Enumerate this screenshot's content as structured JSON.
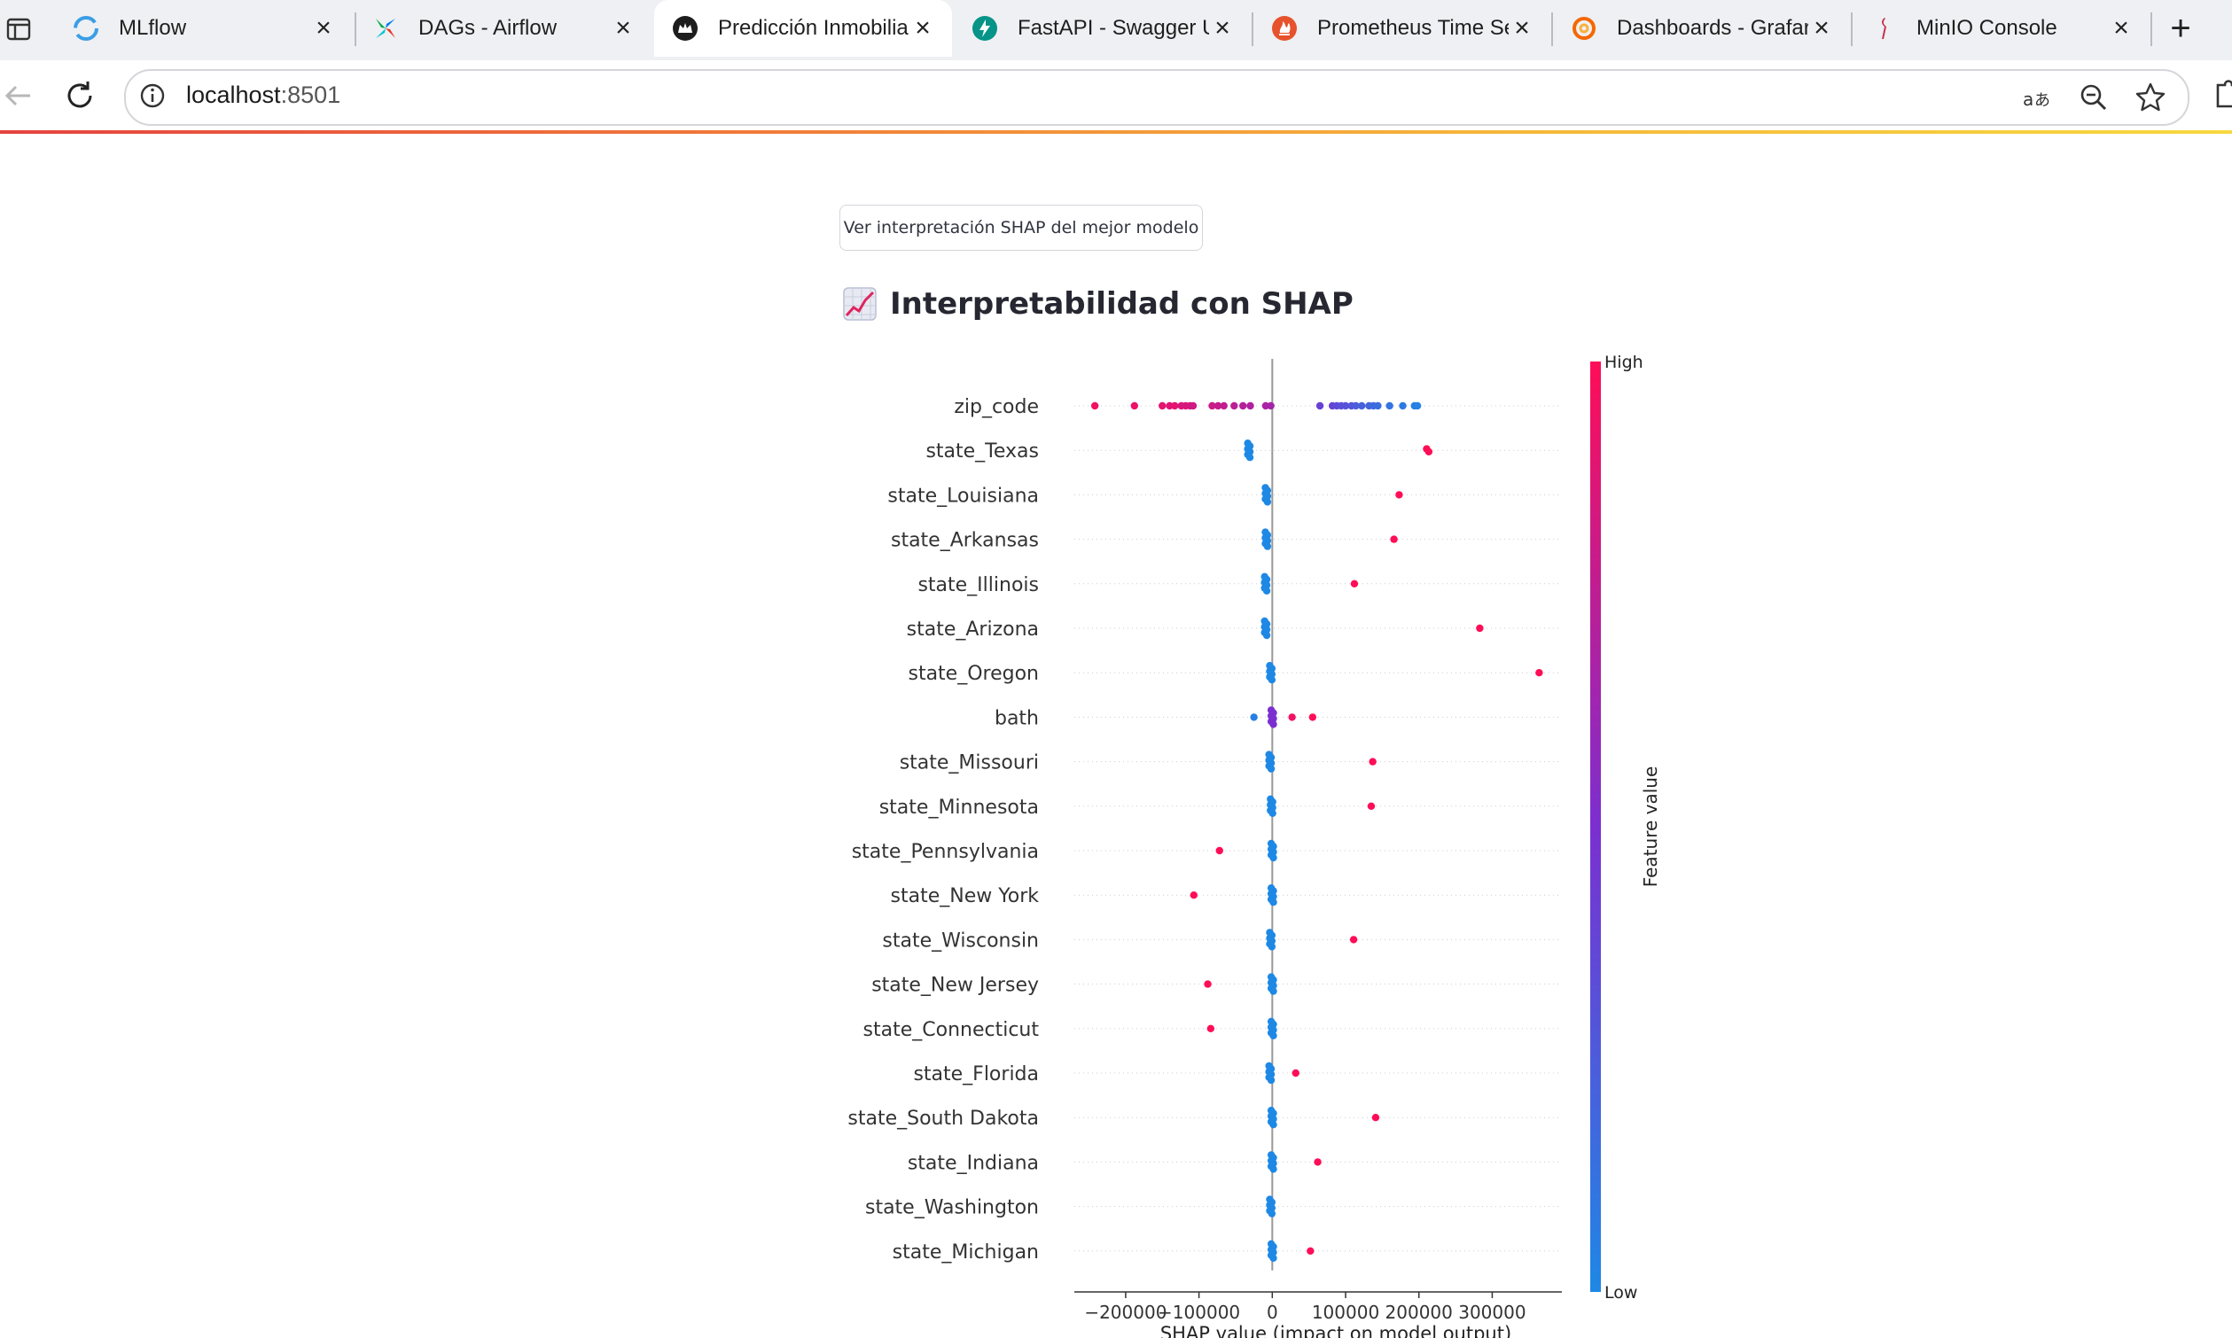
{
  "browser": {
    "tabs": [
      {
        "title": "MLflow",
        "icon": "mlflow-icon"
      },
      {
        "title": "DAGs - Airflow",
        "icon": "airflow-icon"
      },
      {
        "title": "Predicción Inmobilia",
        "icon": "streamlit-crown-icon"
      },
      {
        "title": "FastAPI - Swagger U",
        "icon": "fastapi-icon"
      },
      {
        "title": "Prometheus Time Se",
        "icon": "prometheus-icon"
      },
      {
        "title": "Dashboards - Grafar",
        "icon": "grafana-icon"
      },
      {
        "title": "MinIO Console",
        "icon": "minio-icon"
      }
    ],
    "active_tab": 2,
    "address": {
      "host": "localhost",
      "port": ":8501"
    }
  },
  "page": {
    "button_label": "Ver interpretación SHAP del mejor modelo",
    "heading": "Interpretabilidad con SHAP",
    "heading_icon": "chart-increasing-emoji"
  },
  "colors": {
    "low": "#1e88e5",
    "high": "#ff0d57",
    "mid": "#7b2fd0",
    "zero_line": "#999999"
  },
  "chart_data": {
    "type": "scatter",
    "subtype": "shap-beeswarm",
    "xlabel": "SHAP value (impact on model output)",
    "xticks": [
      -200000,
      -100000,
      0,
      100000,
      200000,
      300000
    ],
    "xtick_labels": [
      "−200000",
      "−100000",
      "0",
      "100000",
      "200000",
      "300000"
    ],
    "xlim": [
      -270000,
      395000
    ],
    "colorbar": {
      "label": "Feature value",
      "high_label": "High",
      "low_label": "Low"
    },
    "features": [
      {
        "name": "zip_code",
        "points": [
          {
            "x": -242000,
            "v": 0.95
          },
          {
            "x": -188000,
            "v": 0.93
          },
          {
            "x": -150000,
            "v": 0.9
          },
          {
            "x": -140000,
            "v": 0.88
          },
          {
            "x": -133000,
            "v": 0.9
          },
          {
            "x": -124000,
            "v": 0.85
          },
          {
            "x": -118000,
            "v": 0.86
          },
          {
            "x": -112000,
            "v": 0.84
          },
          {
            "x": -108000,
            "v": 0.82
          },
          {
            "x": -82000,
            "v": 0.8
          },
          {
            "x": -74000,
            "v": 0.78
          },
          {
            "x": -66000,
            "v": 0.76
          },
          {
            "x": -52000,
            "v": 0.74
          },
          {
            "x": -40000,
            "v": 0.72
          },
          {
            "x": -30000,
            "v": 0.7
          },
          {
            "x": -9000,
            "v": 0.68
          },
          {
            "x": -2000,
            "v": 0.66
          },
          {
            "x": 65000,
            "v": 0.4
          },
          {
            "x": 82000,
            "v": 0.38
          },
          {
            "x": 88000,
            "v": 0.35
          },
          {
            "x": 94000,
            "v": 0.32
          },
          {
            "x": 100000,
            "v": 0.3
          },
          {
            "x": 108000,
            "v": 0.28
          },
          {
            "x": 114000,
            "v": 0.25
          },
          {
            "x": 122000,
            "v": 0.22
          },
          {
            "x": 132000,
            "v": 0.2
          },
          {
            "x": 138000,
            "v": 0.17
          },
          {
            "x": 144000,
            "v": 0.15
          },
          {
            "x": 160000,
            "v": 0.12
          },
          {
            "x": 178000,
            "v": 0.08
          },
          {
            "x": 194000,
            "v": 0.05
          },
          {
            "x": 198000,
            "v": 0.03
          }
        ]
      },
      {
        "name": "state_Texas",
        "points": [
          {
            "x": -32000,
            "v": 0.0,
            "n": 6
          },
          {
            "x": 212000,
            "v": 1.0,
            "n": 2
          }
        ]
      },
      {
        "name": "state_Louisiana",
        "points": [
          {
            "x": -8000,
            "v": 0.0,
            "n": 6
          },
          {
            "x": 173000,
            "v": 1.0
          }
        ]
      },
      {
        "name": "state_Arkansas",
        "points": [
          {
            "x": -8000,
            "v": 0.0,
            "n": 6
          },
          {
            "x": 166000,
            "v": 1.0
          }
        ]
      },
      {
        "name": "state_Illinois",
        "points": [
          {
            "x": -9000,
            "v": 0.0,
            "n": 6
          },
          {
            "x": 112000,
            "v": 1.0
          }
        ]
      },
      {
        "name": "state_Arizona",
        "points": [
          {
            "x": -9000,
            "v": 0.0,
            "n": 6
          },
          {
            "x": 283000,
            "v": 1.0
          }
        ]
      },
      {
        "name": "state_Oregon",
        "points": [
          {
            "x": -2000,
            "v": 0.0,
            "n": 6
          },
          {
            "x": 364000,
            "v": 1.0
          }
        ]
      },
      {
        "name": "bath",
        "points": [
          {
            "x": -25000,
            "v": 0.05
          },
          {
            "x": 0,
            "v": 0.5,
            "n": 6
          },
          {
            "x": 27000,
            "v": 0.95
          },
          {
            "x": 55000,
            "v": 1.0
          }
        ]
      },
      {
        "name": "state_Missouri",
        "points": [
          {
            "x": -3000,
            "v": 0.0,
            "n": 6
          },
          {
            "x": 137000,
            "v": 1.0
          }
        ]
      },
      {
        "name": "state_Minnesota",
        "points": [
          {
            "x": -1000,
            "v": 0.0,
            "n": 6
          },
          {
            "x": 135000,
            "v": 1.0
          }
        ]
      },
      {
        "name": "state_Pennsylvania",
        "points": [
          {
            "x": 0,
            "v": 0.0,
            "n": 6
          },
          {
            "x": -72000,
            "v": 1.0
          }
        ]
      },
      {
        "name": "state_New York",
        "points": [
          {
            "x": 0,
            "v": 0.0,
            "n": 6
          },
          {
            "x": -107000,
            "v": 1.0
          }
        ]
      },
      {
        "name": "state_Wisconsin",
        "points": [
          {
            "x": -2000,
            "v": 0.0,
            "n": 6
          },
          {
            "x": 111000,
            "v": 1.0
          }
        ]
      },
      {
        "name": "state_New Jersey",
        "points": [
          {
            "x": 0,
            "v": 0.0,
            "n": 6
          },
          {
            "x": -88000,
            "v": 1.0
          }
        ]
      },
      {
        "name": "state_Connecticut",
        "points": [
          {
            "x": 0,
            "v": 0.0,
            "n": 6
          },
          {
            "x": -84000,
            "v": 1.0
          }
        ]
      },
      {
        "name": "state_Florida",
        "points": [
          {
            "x": -3000,
            "v": 0.0,
            "n": 6
          },
          {
            "x": 32000,
            "v": 1.0
          }
        ]
      },
      {
        "name": "state_South Dakota",
        "points": [
          {
            "x": 0,
            "v": 0.0,
            "n": 6
          },
          {
            "x": 141000,
            "v": 1.0
          }
        ]
      },
      {
        "name": "state_Indiana",
        "points": [
          {
            "x": 0,
            "v": 0.0,
            "n": 6
          },
          {
            "x": 62000,
            "v": 1.0
          }
        ]
      },
      {
        "name": "state_Washington",
        "points": [
          {
            "x": -2000,
            "v": 0.0,
            "n": 6
          }
        ]
      },
      {
        "name": "state_Michigan",
        "points": [
          {
            "x": 0,
            "v": 0.0,
            "n": 6
          },
          {
            "x": 52000,
            "v": 1.0
          }
        ]
      }
    ]
  }
}
